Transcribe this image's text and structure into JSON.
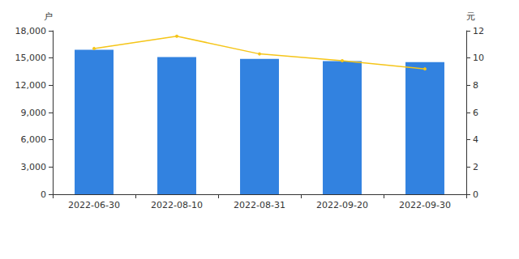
{
  "chart_data": {
    "type": "bar",
    "ylabel": "户",
    "y2label": "元",
    "categories": [
      "2022-06-30",
      "2022-08-10",
      "2022-08-31",
      "2022-09-20",
      "2022-09-30"
    ],
    "series": [
      {
        "type": "bar",
        "color": "#3282e0",
        "values": [
          15900,
          15100,
          14900,
          14650,
          14550
        ]
      },
      {
        "type": "line",
        "color": "#f5c518",
        "axis": "y2",
        "marker": "circle",
        "values": [
          10.7,
          11.6,
          10.3,
          9.8,
          9.2
        ]
      }
    ],
    "ylim": [
      0,
      18000
    ],
    "yticks": [
      0,
      {
        "value": 3000,
        "label": "3,000"
      },
      {
        "value": 6000,
        "label": "6,000"
      },
      {
        "value": 9000,
        "label": "9,000"
      },
      {
        "value": 12000,
        "label": "12,000"
      },
      {
        "value": 15000,
        "label": "15,000"
      },
      {
        "value": 18000,
        "label": "18,000"
      }
    ],
    "y2lim": [
      0,
      12
    ],
    "y2ticks": [
      0,
      2,
      4,
      6,
      8,
      10,
      12
    ],
    "grid": false
  }
}
